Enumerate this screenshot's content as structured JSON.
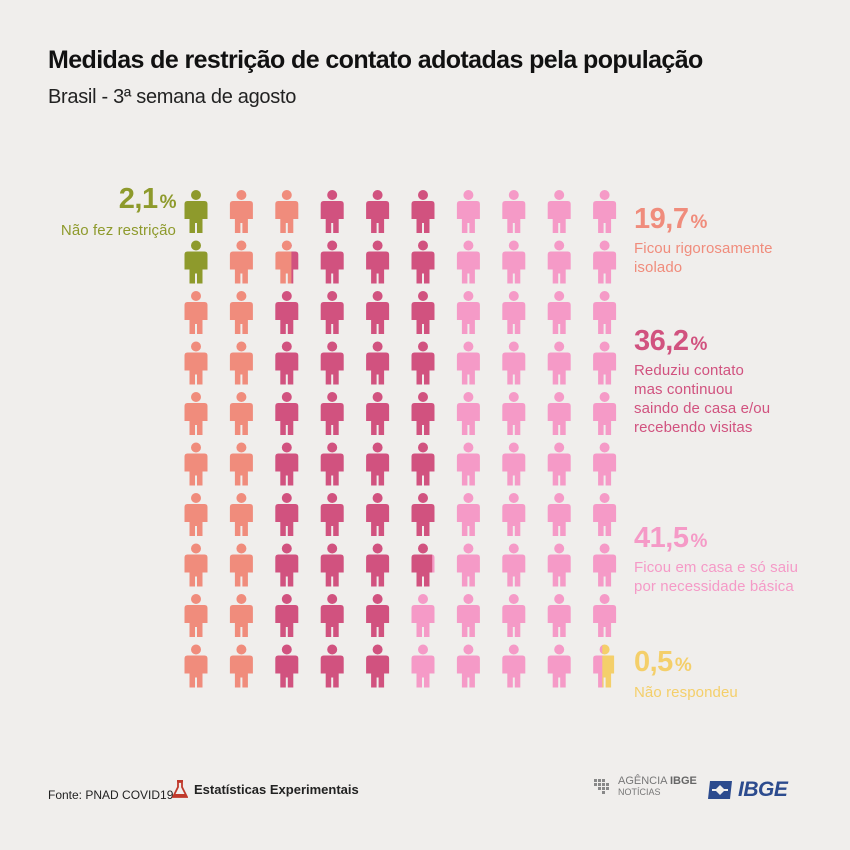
{
  "header": {
    "title": "Medidas de restrição de contato adotadas pela população",
    "subtitle": "Brasil - 3ª semana de agosto"
  },
  "chart_data": {
    "type": "waffle",
    "grid": {
      "rows": 10,
      "cols": 10
    },
    "categories": [
      {
        "key": "nao_fez",
        "value": 2.1,
        "value_label": "2,1",
        "unit": "%",
        "description": "Não fez restrição",
        "color": "#8e9a2c",
        "icons": 2
      },
      {
        "key": "isolado",
        "value": 19.7,
        "value_label": "19,7",
        "unit": "%",
        "description_lines": [
          "Ficou rigorosamente",
          "isolado"
        ],
        "color": "#f08c7c",
        "icons": 19.7
      },
      {
        "key": "reduziu",
        "value": 36.2,
        "value_label": "36,2",
        "unit": "%",
        "description_lines": [
          "Reduziu contato",
          "mas continuou",
          "saindo de casa e/ou",
          "recebendo visitas"
        ],
        "color": "#d1527f",
        "icons": 36.2
      },
      {
        "key": "em_casa",
        "value": 41.5,
        "value_label": "41,5",
        "unit": "%",
        "description_lines": [
          "Ficou em casa e só saiu",
          "por necessidade básica"
        ],
        "color": "#f59ac7",
        "icons": 41.5
      },
      {
        "key": "nao_resp",
        "value": 0.5,
        "value_label": "0,5",
        "unit": "%",
        "description": "Não respondeu",
        "color": "#f4cf6a",
        "icons": 0.5
      }
    ]
  },
  "footer": {
    "source": "Fonte: PNAD COVID19",
    "experimental": "Estatísticas Experimentais",
    "agencia_line1": "AGÊNCIA",
    "agencia_line1b": "IBGE",
    "agencia_line2": "NOTÍCIAS",
    "ibge": "IBGE"
  }
}
